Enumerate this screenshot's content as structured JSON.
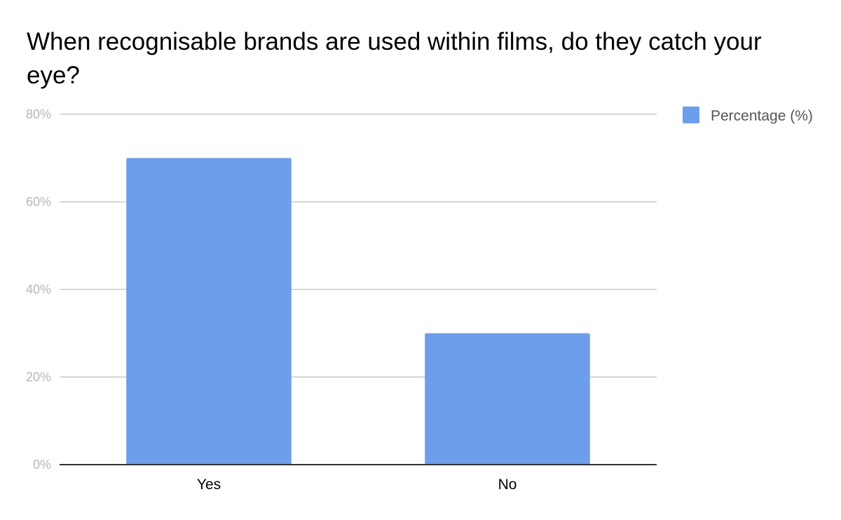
{
  "chart_data": {
    "type": "bar",
    "title": "When recognisable brands are used within films, do they catch your eye?",
    "categories": [
      "Yes",
      "No"
    ],
    "series": [
      {
        "name": "Percentage (%)",
        "values": [
          70,
          30
        ],
        "color": "#6d9eeb"
      }
    ],
    "y_ticks": [
      "0%",
      "20%",
      "40%",
      "60%",
      "80%"
    ],
    "ylim": [
      0,
      80
    ],
    "xlabel": "",
    "ylabel": "",
    "grid": true,
    "legend_position": "right",
    "gridline_color": "#cccccc",
    "axis_color": "#333333"
  }
}
